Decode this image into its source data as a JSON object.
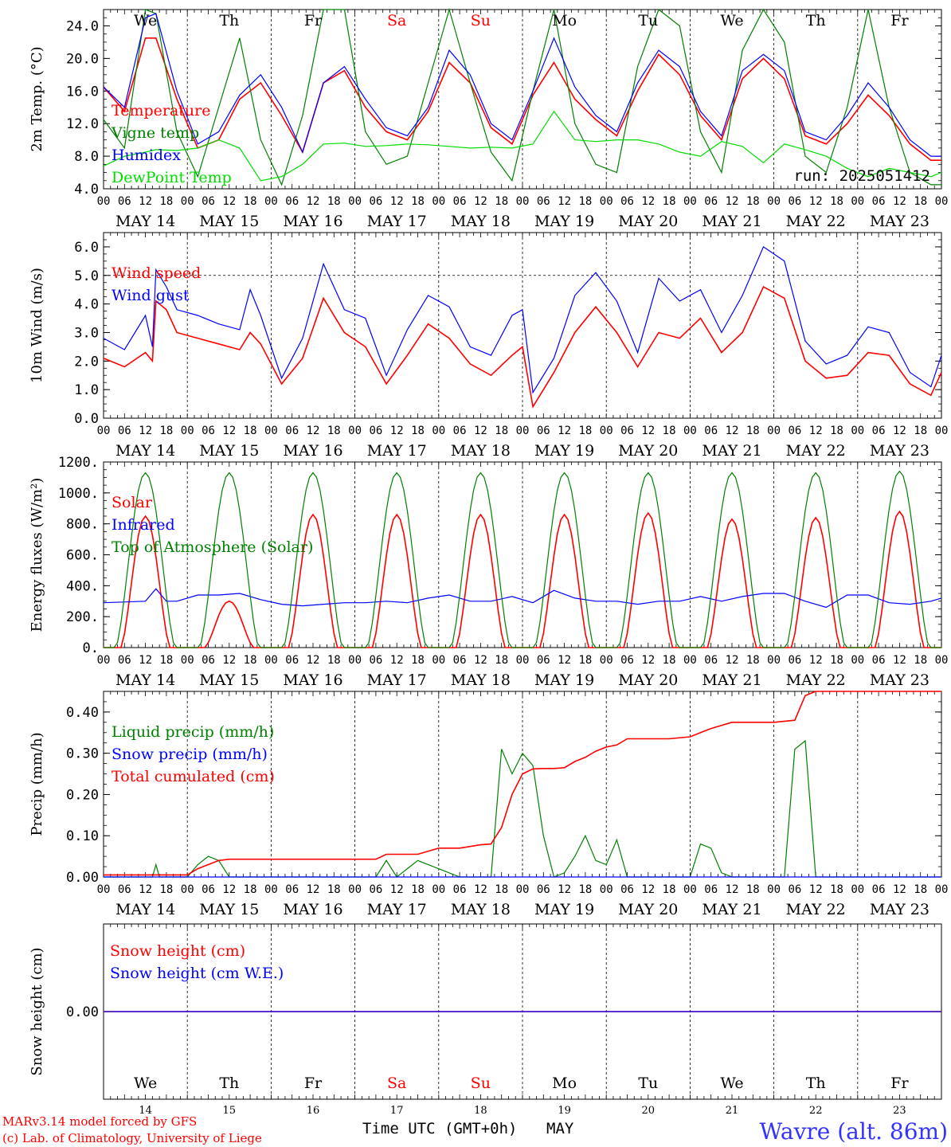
{
  "colors": {
    "red": "#ff0000",
    "green": "#008000",
    "blue": "#0000ff",
    "lightgreen": "#00dd00",
    "blue_title": "#3333ff"
  },
  "x_hour_labels": [
    "00",
    "06",
    "12",
    "18"
  ],
  "x_final_label": "00",
  "date_labels": [
    "MAY 14",
    "MAY 15",
    "MAY 16",
    "MAY 17",
    "MAY 18",
    "MAY 19",
    "MAY 20",
    "MAY 21",
    "MAY 22",
    "MAY 23"
  ],
  "weekdays": [
    "We",
    "Th",
    "Fr",
    "Sa",
    "Su",
    "Mo",
    "Tu",
    "We",
    "Th",
    "Fr"
  ],
  "weekend_indices": [
    3,
    4
  ],
  "day_numbers": [
    "14",
    "15",
    "16",
    "17",
    "18",
    "19",
    "20",
    "21",
    "22",
    "23"
  ],
  "footer": {
    "credit_line1": "MARv3.14 model forced by GFS",
    "credit_line2": "(c) Lab. of Climatology, University of Liege",
    "axis_title": "Time UTC (GMT+0h)",
    "month": "MAY",
    "station": "Wavre (alt. 86m)"
  },
  "chart_data": [
    {
      "type": "line",
      "ylabel": "2m Temp. (°C)",
      "ylim": [
        4,
        26
      ],
      "yticks": [
        "4.0",
        "8.0",
        "12.0",
        "16.0",
        "20.0",
        "24.0"
      ],
      "ytick_values": [
        4,
        8,
        12,
        16,
        20,
        24
      ],
      "annotation": "run: 2025051412",
      "x_unit": "hours since MAY 14 00 UTC",
      "series": [
        {
          "name": "Temperature",
          "color": "red",
          "x": [
            0,
            6,
            12,
            15,
            21,
            27,
            33,
            39,
            45,
            51,
            57,
            63,
            69,
            75,
            81,
            87,
            93,
            99,
            105,
            111,
            117,
            123,
            129,
            135,
            141,
            147,
            153,
            159,
            165,
            171,
            177,
            183,
            189,
            195,
            201,
            207,
            213,
            219,
            225,
            231,
            237,
            240
          ],
          "values": [
            16.5,
            13.5,
            22.5,
            22.5,
            15,
            9,
            10,
            15,
            17,
            13,
            8.5,
            17,
            18.5,
            14,
            11,
            10,
            13.5,
            19.5,
            17,
            11.5,
            9.5,
            15.5,
            19.5,
            15,
            12.5,
            10.5,
            16,
            20.5,
            18,
            13,
            10,
            17.5,
            20,
            17.5,
            10.5,
            9.5,
            12,
            15.5,
            13,
            9.5,
            7.5,
            7.5
          ]
        },
        {
          "name": "Vigne temp",
          "color": "green",
          "x": [
            0,
            6,
            12,
            15,
            21,
            27,
            33,
            39,
            45,
            51,
            57,
            63,
            69,
            75,
            81,
            87,
            93,
            99,
            105,
            111,
            117,
            123,
            129,
            135,
            141,
            147,
            153,
            159,
            165,
            171,
            177,
            183,
            189,
            195,
            201,
            207,
            213,
            219,
            225,
            231,
            237,
            240
          ],
          "values": [
            12.5,
            9,
            26,
            25.5,
            11,
            5.5,
            14,
            22.5,
            10,
            4.5,
            13,
            26,
            26,
            11,
            7,
            8,
            17,
            26,
            17,
            8.5,
            5,
            16,
            26,
            12,
            7,
            6,
            19,
            26,
            24,
            11,
            6,
            21,
            26,
            22,
            8,
            6,
            14,
            26,
            14,
            6,
            4.5,
            4.5
          ]
        },
        {
          "name": "Humidex",
          "color": "blue",
          "x": [
            0,
            6,
            12,
            15,
            21,
            27,
            33,
            39,
            45,
            51,
            57,
            63,
            69,
            75,
            81,
            87,
            93,
            99,
            105,
            111,
            117,
            123,
            129,
            135,
            141,
            147,
            153,
            159,
            165,
            171,
            177,
            183,
            189,
            195,
            201,
            207,
            213,
            219,
            225,
            231,
            237,
            240
          ],
          "values": [
            16.5,
            14,
            25,
            25.5,
            16,
            9.5,
            11,
            15.5,
            18,
            14,
            8.5,
            17,
            19,
            15,
            11.5,
            10.5,
            14,
            21,
            18,
            12,
            10,
            16,
            22.5,
            16.5,
            13,
            11,
            17,
            21,
            19,
            13.5,
            10.5,
            18.5,
            20.5,
            18.5,
            11,
            10,
            13,
            17,
            14,
            10,
            8,
            8
          ]
        },
        {
          "name": "DewPoint Temp",
          "color": "lightgreen",
          "x": [
            0,
            6,
            12,
            15,
            21,
            27,
            33,
            39,
            45,
            51,
            57,
            63,
            69,
            75,
            81,
            87,
            93,
            99,
            105,
            111,
            117,
            123,
            129,
            135,
            141,
            147,
            153,
            159,
            165,
            171,
            177,
            183,
            189,
            195,
            201,
            207,
            213,
            219,
            225,
            231,
            237,
            240
          ],
          "values": [
            6.8,
            8,
            8.5,
            8.8,
            8.7,
            9,
            10,
            9,
            5,
            5.5,
            7,
            9.5,
            9.6,
            9.2,
            9.3,
            9.5,
            9.4,
            9.2,
            9,
            9.1,
            9,
            9.5,
            13.5,
            10,
            9.8,
            10,
            10,
            9.5,
            8.5,
            8,
            9.8,
            9.2,
            7.2,
            9.5,
            8.8,
            8,
            6.5,
            5.5,
            6.5,
            6,
            5.5,
            6
          ]
        }
      ]
    },
    {
      "type": "line",
      "ylabel": "10m Wind (m/s)",
      "ylim": [
        0,
        6.5
      ],
      "yticks": [
        "0.0",
        "1.0",
        "2.0",
        "3.0",
        "4.0",
        "5.0",
        "6.0"
      ],
      "ytick_values": [
        0,
        1,
        2,
        3,
        4,
        5,
        6
      ],
      "reference_line": 5.0,
      "x_unit": "hours since MAY 14 00 UTC",
      "series": [
        {
          "name": "Wind speed",
          "color": "red",
          "x": [
            0,
            6,
            12,
            14,
            15,
            18,
            21,
            27,
            33,
            39,
            42,
            45,
            51,
            57,
            63,
            69,
            75,
            81,
            87,
            93,
            99,
            105,
            111,
            117,
            120,
            123,
            129,
            135,
            141,
            147,
            153,
            159,
            165,
            171,
            177,
            183,
            189,
            195,
            201,
            207,
            213,
            219,
            225,
            231,
            237,
            240
          ],
          "values": [
            2.1,
            1.8,
            2.3,
            2.0,
            4.1,
            3.8,
            3.0,
            2.8,
            2.6,
            2.4,
            3.0,
            2.6,
            1.2,
            2.1,
            4.2,
            3.0,
            2.5,
            1.2,
            2.2,
            3.3,
            2.8,
            1.9,
            1.5,
            2.2,
            2.5,
            0.4,
            1.6,
            3.0,
            3.9,
            3.0,
            1.8,
            3.0,
            2.8,
            3.5,
            2.3,
            3.0,
            4.6,
            4.2,
            2.0,
            1.4,
            1.5,
            2.3,
            2.2,
            1.2,
            0.8,
            1.6
          ]
        },
        {
          "name": "Wind gust",
          "color": "blue",
          "x": [
            0,
            6,
            12,
            14,
            15,
            18,
            21,
            27,
            33,
            39,
            42,
            45,
            51,
            57,
            63,
            69,
            75,
            81,
            87,
            93,
            99,
            105,
            111,
            117,
            120,
            123,
            129,
            135,
            141,
            147,
            153,
            159,
            165,
            171,
            177,
            183,
            189,
            195,
            201,
            207,
            213,
            219,
            225,
            231,
            237,
            240
          ],
          "values": [
            2.8,
            2.4,
            3.6,
            2.5,
            5.2,
            4.6,
            3.8,
            3.6,
            3.3,
            3.1,
            4.5,
            3.6,
            1.4,
            2.8,
            5.4,
            3.8,
            3.5,
            1.5,
            3.1,
            4.3,
            3.9,
            2.5,
            2.2,
            3.6,
            3.8,
            0.9,
            2.1,
            4.3,
            5.1,
            4.1,
            2.3,
            4.9,
            4.1,
            4.5,
            3.0,
            4.3,
            6.0,
            5.5,
            2.7,
            1.9,
            2.2,
            3.2,
            3.0,
            1.6,
            1.1,
            2.2
          ]
        }
      ]
    },
    {
      "type": "line",
      "ylabel": "Energy fluxes (W/m²)",
      "ylim": [
        0,
        1200
      ],
      "yticks": [
        "0.",
        "200.",
        "400.",
        "600.",
        "800.",
        "1000.",
        "1200."
      ],
      "ytick_values": [
        0,
        200,
        400,
        600,
        800,
        1000,
        1200
      ],
      "x_unit": "hours since MAY 14 00 UTC",
      "series": [
        {
          "name": "Solar",
          "color": "red",
          "daily_peaks": [
            850,
            300,
            860,
            860,
            860,
            860,
            870,
            830,
            840,
            880
          ],
          "peak_hour": 12
        },
        {
          "name": "Infrared",
          "color": "blue",
          "x": [
            0,
            12,
            15,
            18,
            21,
            27,
            33,
            39,
            45,
            51,
            57,
            63,
            69,
            75,
            81,
            87,
            93,
            99,
            105,
            111,
            117,
            123,
            129,
            135,
            141,
            147,
            153,
            159,
            165,
            171,
            177,
            183,
            189,
            195,
            201,
            207,
            213,
            219,
            225,
            231,
            237,
            240
          ],
          "values": [
            290,
            300,
            380,
            300,
            300,
            340,
            340,
            350,
            310,
            280,
            270,
            280,
            290,
            290,
            300,
            290,
            320,
            340,
            300,
            300,
            330,
            290,
            370,
            320,
            300,
            300,
            280,
            300,
            300,
            330,
            300,
            330,
            350,
            350,
            300,
            260,
            340,
            340,
            290,
            280,
            300,
            320
          ]
        },
        {
          "name": "Top of Atmosphere (Solar)",
          "color": "green",
          "daily_peaks": [
            1130,
            1130,
            1130,
            1130,
            1130,
            1130,
            1130,
            1130,
            1130,
            1140
          ],
          "peak_hour": 12
        }
      ]
    },
    {
      "type": "line",
      "ylabel": "Precip (mm/h)",
      "ylim": [
        0,
        0.45
      ],
      "yticks": [
        "0.00",
        "0.10",
        "0.20",
        "0.30",
        "0.40"
      ],
      "ytick_values": [
        0,
        0.1,
        0.2,
        0.3,
        0.4
      ],
      "x_unit": "hours since MAY 14 00 UTC",
      "series": [
        {
          "name": "Liquid precip (mm/h)",
          "color": "green",
          "x": [
            0,
            14,
            15,
            16,
            24,
            27,
            30,
            33,
            36,
            48,
            60,
            78,
            81,
            84,
            87,
            90,
            102,
            108,
            111,
            114,
            117,
            120,
            123,
            126,
            129,
            132,
            135,
            138,
            141,
            144,
            147,
            150,
            168,
            171,
            174,
            177,
            180,
            195,
            198,
            201,
            204,
            240
          ],
          "values": [
            0,
            0,
            0.03,
            0,
            0,
            0.03,
            0.05,
            0.04,
            0,
            0,
            0,
            0,
            0.04,
            0,
            0.02,
            0.04,
            0,
            0,
            0,
            0.31,
            0.25,
            0.3,
            0.27,
            0.1,
            0,
            0.01,
            0.05,
            0.1,
            0.04,
            0.03,
            0.09,
            0,
            0,
            0.08,
            0.07,
            0.01,
            0,
            0,
            0.31,
            0.33,
            0,
            0
          ]
        },
        {
          "name": "Snow precip (mm/h)",
          "color": "blue",
          "x": [
            0,
            240
          ],
          "values": [
            0,
            0
          ]
        },
        {
          "name": "Total cumulated (cm)",
          "color": "red",
          "x": [
            0,
            24,
            27,
            30,
            33,
            36,
            48,
            60,
            72,
            78,
            81,
            84,
            90,
            96,
            102,
            108,
            111,
            114,
            117,
            120,
            123,
            126,
            129,
            132,
            135,
            138,
            141,
            144,
            147,
            150,
            156,
            162,
            168,
            174,
            180,
            186,
            192,
            198,
            201,
            204,
            240
          ],
          "values": [
            0.005,
            0.005,
            0.02,
            0.03,
            0.04,
            0.043,
            0.043,
            0.043,
            0.043,
            0.043,
            0.055,
            0.055,
            0.055,
            0.07,
            0.07,
            0.078,
            0.08,
            0.12,
            0.2,
            0.25,
            0.262,
            0.263,
            0.263,
            0.265,
            0.28,
            0.29,
            0.305,
            0.315,
            0.32,
            0.335,
            0.335,
            0.335,
            0.34,
            0.36,
            0.375,
            0.375,
            0.375,
            0.38,
            0.44,
            0.45,
            0.45
          ]
        }
      ]
    },
    {
      "type": "line",
      "ylabel": "Snow height (cm)",
      "ylim": [
        -1,
        1
      ],
      "yticks": [
        "0.00"
      ],
      "ytick_values": [
        0
      ],
      "x_unit": "hours since MAY 14 00 UTC",
      "series": [
        {
          "name": "Snow height (cm)",
          "color": "red",
          "x": [
            0,
            240
          ],
          "values": [
            0,
            0
          ]
        },
        {
          "name": "Snow height (cm W.E.)",
          "color": "blue",
          "x": [
            0,
            240
          ],
          "values": [
            0,
            0
          ]
        }
      ]
    }
  ]
}
